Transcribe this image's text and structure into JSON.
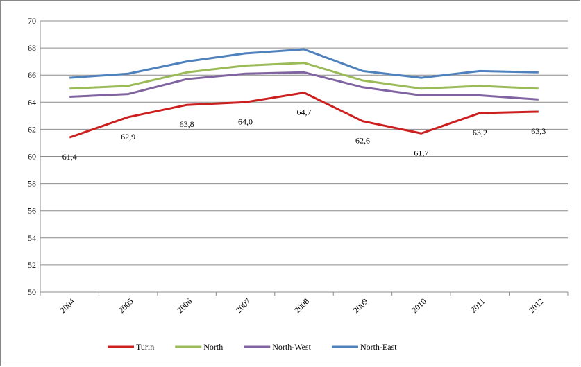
{
  "chart_data": {
    "type": "line",
    "categories": [
      "2004",
      "2005",
      "2006",
      "2007",
      "2008",
      "2009",
      "2010",
      "2011",
      "2012"
    ],
    "series": [
      {
        "name": "Turin",
        "color": "#cc1f1f",
        "values": [
          61.4,
          62.9,
          63.8,
          64.0,
          64.7,
          62.6,
          61.7,
          63.2,
          63.3
        ],
        "value_labels": [
          "61,4",
          "62,9",
          "63,8",
          "64,0",
          "64,7",
          "62,6",
          "61,7",
          "63,2",
          "63,3"
        ]
      },
      {
        "name": "North",
        "color": "#9bbb59",
        "values": [
          65.0,
          65.2,
          66.2,
          66.7,
          66.9,
          65.6,
          65.0,
          65.2,
          65.0
        ]
      },
      {
        "name": "North-West",
        "color": "#8064a2",
        "values": [
          64.4,
          64.6,
          65.7,
          66.1,
          66.2,
          65.1,
          64.5,
          64.5,
          64.2
        ]
      },
      {
        "name": "North-East",
        "color": "#4f81bd",
        "values": [
          65.8,
          66.1,
          67.0,
          67.6,
          67.9,
          66.3,
          65.8,
          66.3,
          66.2
        ]
      }
    ],
    "ylim": [
      50,
      70
    ],
    "yticks": [
      50,
      52,
      54,
      56,
      58,
      60,
      62,
      64,
      66,
      68,
      70
    ],
    "grid": true,
    "legend": "bottom"
  }
}
